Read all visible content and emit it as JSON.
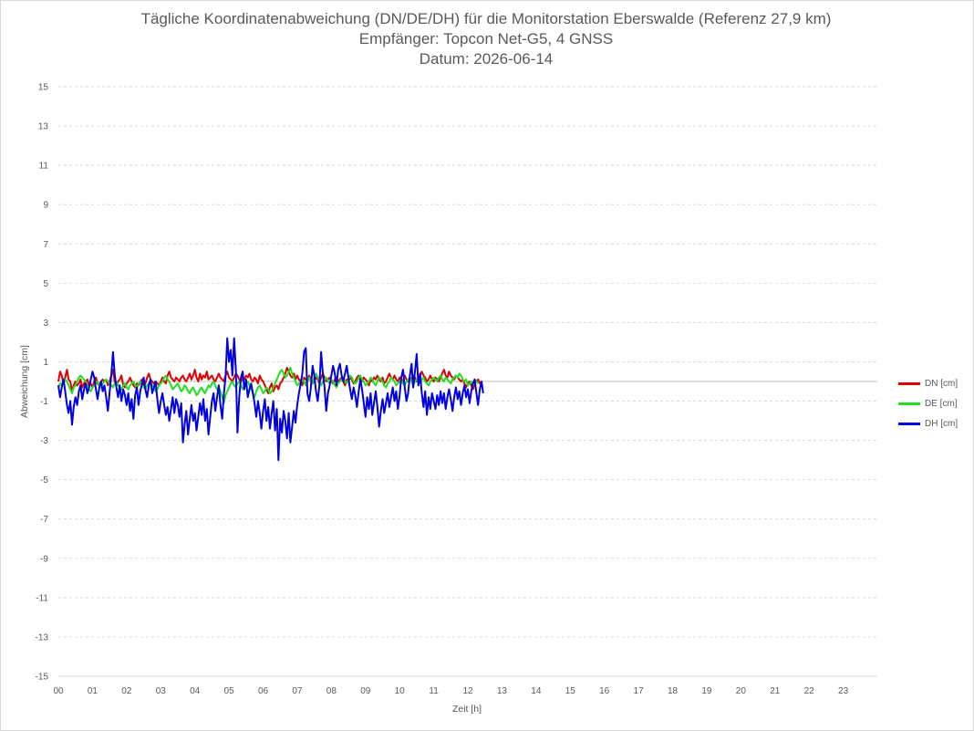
{
  "chart_data": {
    "type": "line",
    "title_lines": [
      "Tägliche Koordinatenabweichung (DN/DE/DH) für die Monitorstation Eberswalde (Referenz 27,9 km)",
      "Empfänger: Topcon Net-G5, 4 GNSS",
      "Datum: 2026-06-14"
    ],
    "xlabel": "Zeit [h]",
    "ylabel": "Abweichung [cm]",
    "xlim": [
      0,
      24
    ],
    "ylim": [
      -15,
      15
    ],
    "x_ticks": [
      "00",
      "01",
      "02",
      "03",
      "04",
      "05",
      "06",
      "07",
      "08",
      "09",
      "10",
      "11",
      "12",
      "13",
      "14",
      "15",
      "16",
      "17",
      "18",
      "19",
      "20",
      "21",
      "22",
      "23"
    ],
    "y_ticks": [
      "15",
      "13",
      "11",
      "9",
      "7",
      "5",
      "3",
      "1",
      "-1",
      "-3",
      "-5",
      "-7",
      "-9",
      "-11",
      "-13",
      "-15"
    ],
    "grid": true,
    "legend_position": "right",
    "sample_interval_h": 0.05,
    "series": [
      {
        "name": "DN [cm]",
        "color": "#e00000",
        "x_start": 0,
        "values": [
          0.0,
          0.5,
          0.3,
          -0.1,
          0.2,
          0.6,
          0.1,
          0.0,
          -0.5,
          -0.2,
          0.0,
          -0.2,
          -0.1,
          0.1,
          -0.3,
          -0.1,
          0.0,
          0.1,
          -0.2,
          -0.1,
          -0.3,
          0.0,
          0.2,
          -0.1,
          -0.2,
          0.0,
          0.1,
          0.0,
          0.1,
          -0.2,
          0.0,
          0.3,
          0.6,
          0.0,
          -0.2,
          0.0,
          0.1,
          0.3,
          -0.2,
          -0.3,
          -0.1,
          0.0,
          0.2,
          0.0,
          -0.2,
          -0.3,
          -0.1,
          -0.2,
          0.0,
          0.1,
          -0.2,
          -0.1,
          0.2,
          0.4,
          0.1,
          0.0,
          -0.1,
          0.0,
          -0.1,
          -0.2,
          0.0,
          0.2,
          0.0,
          -0.1,
          0.3,
          0.5,
          0.2,
          0.1,
          0.0,
          0.2,
          0.1,
          0.0,
          0.2,
          0.3,
          0.1,
          0.0,
          0.2,
          0.4,
          0.1,
          0.3,
          0.6,
          0.2,
          0.0,
          0.4,
          0.1,
          0.3,
          0.2,
          0.5,
          0.1,
          0.2,
          0.3,
          0.1,
          0.0,
          0.2,
          0.4,
          0.2,
          0.1,
          0.0,
          0.3,
          0.5,
          0.2,
          0.1,
          0.0,
          0.2,
          0.4,
          0.3,
          0.1,
          0.0,
          0.2,
          0.1,
          0.3,
          0.2,
          0.4,
          0.1,
          0.0,
          0.2,
          0.1,
          -0.1,
          0.3,
          0.1,
          0.0,
          -0.2,
          -0.4,
          -0.6,
          -0.3,
          -0.1,
          -0.5,
          -0.3,
          -0.2,
          -0.4,
          -0.1,
          0.0,
          0.2,
          0.4,
          0.7,
          0.5,
          0.3,
          0.2,
          0.4,
          0.1,
          0.3,
          0.1,
          0.0,
          -0.2,
          0.2,
          0.1,
          0.0,
          0.3,
          0.1,
          -0.1,
          0.0,
          0.2,
          0.1,
          -0.1,
          0.2,
          0.4,
          0.2,
          0.0,
          0.1,
          0.2,
          0.0,
          -0.1,
          0.1,
          0.2,
          0.0,
          0.1,
          0.2,
          0.0,
          -0.2,
          0.1,
          0.0,
          0.2,
          0.1,
          -0.1,
          0.0,
          0.2,
          0.3,
          0.1,
          0.0,
          0.2,
          0.1,
          0.0,
          -0.2,
          0.1,
          0.0,
          0.2,
          0.1,
          0.3,
          0.1,
          0.0,
          0.2,
          -0.1,
          0.0,
          0.2,
          0.4,
          0.2,
          0.1,
          0.3,
          0.1,
          0.0,
          0.2,
          0.1,
          0.0,
          0.3,
          0.1,
          0.0,
          0.2,
          0.1,
          0.3,
          0.2,
          0.0,
          0.1,
          0.3,
          0.5,
          0.3,
          0.2,
          0.0,
          0.1,
          0.3,
          0.1,
          0.0,
          0.2,
          0.1,
          0.0,
          0.2,
          0.4,
          0.6,
          0.3,
          0.2,
          0.5,
          0.3,
          0.2,
          0.1,
          0.3,
          0.2,
          0.1,
          0.0,
          0.1,
          -0.1,
          -0.3,
          -0.1,
          0.0,
          -0.2,
          -0.4,
          -0.1,
          0.0,
          0.1,
          -0.1,
          0.0
        ]
      },
      {
        "name": "DE [cm]",
        "color": "#1ee01e",
        "x_start": 0,
        "values": [
          -0.3,
          -0.1,
          -0.2,
          0.0,
          0.1,
          0.0,
          -0.2,
          -0.4,
          -0.6,
          -0.3,
          -0.2,
          0.0,
          0.2,
          0.3,
          0.2,
          0.1,
          0.0,
          -0.2,
          -0.4,
          -0.5,
          -0.3,
          -0.2,
          -0.1,
          0.0,
          -0.2,
          -0.3,
          -0.1,
          0.0,
          0.1,
          0.0,
          -0.1,
          -0.2,
          -0.3,
          -0.1,
          0.0,
          -0.2,
          -0.3,
          -0.4,
          -0.2,
          -0.1,
          -0.3,
          -0.4,
          -0.2,
          -0.1,
          0.0,
          -0.2,
          -0.3,
          -0.1,
          0.0,
          -0.2,
          -0.3,
          -0.4,
          -0.2,
          -0.1,
          0.0,
          -0.2,
          -0.3,
          -0.5,
          -0.4,
          -0.2,
          -0.1,
          0.0,
          0.2,
          0.3,
          0.1,
          0.0,
          -0.2,
          -0.4,
          -0.3,
          -0.2,
          -0.1,
          -0.3,
          -0.5,
          -0.4,
          -0.2,
          -0.3,
          -0.5,
          -0.6,
          -0.4,
          -0.3,
          -0.5,
          -0.7,
          -0.6,
          -0.4,
          -0.3,
          -0.5,
          -0.6,
          -0.4,
          -0.2,
          -0.3,
          -0.1,
          0.0,
          -0.2,
          -0.4,
          -0.3,
          -0.5,
          -0.8,
          -1.1,
          -0.7,
          -0.5,
          -0.3,
          -0.1,
          0.0,
          -0.2,
          -0.3,
          -0.1,
          0.0,
          -0.2,
          -0.4,
          -0.2,
          -0.1,
          0.0,
          -0.2,
          -0.4,
          -0.6,
          -0.8,
          -0.5,
          -0.3,
          -0.2,
          -0.4,
          -0.6,
          -0.5,
          -0.3,
          -0.4,
          -0.6,
          -0.5,
          -0.3,
          -0.1,
          0.1,
          0.3,
          0.5,
          0.6,
          0.4,
          0.2,
          0.3,
          0.5,
          0.7,
          0.4,
          0.2,
          0.0,
          -0.2,
          -0.1,
          0.0,
          0.1,
          0.0,
          -0.2,
          0.1,
          0.2,
          0.0,
          -0.1,
          0.2,
          0.4,
          0.2,
          0.0,
          -0.2,
          0.0,
          0.1,
          0.2,
          0.0,
          -0.1,
          0.1,
          0.0,
          -0.2,
          -0.3,
          -0.1,
          0.0,
          0.1,
          0.2,
          0.0,
          -0.1,
          0.1,
          0.3,
          0.2,
          0.0,
          -0.1,
          0.0,
          0.2,
          0.3,
          0.1,
          0.0,
          -0.2,
          -0.1,
          0.0,
          0.2,
          0.1,
          -0.1,
          -0.2,
          0.0,
          0.2,
          0.1,
          0.0,
          -0.2,
          -0.3,
          -0.1,
          0.0,
          0.2,
          0.1,
          0.0,
          -0.2,
          -0.1,
          0.0,
          0.1,
          -0.1,
          -0.2,
          0.0,
          0.1,
          0.2,
          0.0,
          -0.2,
          0.0,
          0.1,
          0.0,
          -0.1,
          0.1,
          0.2,
          0.0,
          -0.1,
          -0.2,
          0.0,
          0.1,
          0.2,
          0.1,
          0.0,
          0.2,
          0.3,
          0.1,
          0.0,
          0.2,
          0.1,
          0.0,
          -0.1,
          0.1,
          0.2,
          0.3,
          0.2,
          0.4,
          0.3,
          0.1,
          0.0,
          0.1,
          -0.2,
          -0.1,
          0.0,
          -0.2,
          0.1,
          0.0,
          -0.1
        ]
      },
      {
        "name": "DH [cm]",
        "color": "#0000e0",
        "x_start": 0,
        "values": [
          -0.2,
          -0.8,
          -0.3,
          0.1,
          -0.5,
          -1.2,
          -1.6,
          -1.0,
          -2.2,
          -1.3,
          -0.8,
          -1.2,
          -0.5,
          -0.2,
          -0.9,
          -0.4,
          -0.1,
          -0.6,
          -0.3,
          0.1,
          0.5,
          0.2,
          -0.4,
          -0.9,
          -0.3,
          0.0,
          -0.5,
          -0.2,
          -0.8,
          -1.5,
          -0.6,
          0.3,
          1.5,
          0.4,
          -0.3,
          -0.8,
          -0.2,
          -1.0,
          -0.4,
          -0.7,
          -1.2,
          -0.6,
          -1.5,
          -0.9,
          -1.9,
          -0.7,
          -0.3,
          -1.2,
          -0.5,
          -0.1,
          0.2,
          -0.4,
          -0.8,
          -0.2,
          0.1,
          -0.6,
          -0.3,
          0.0,
          -0.9,
          -1.6,
          -1.0,
          -0.6,
          -1.2,
          -1.7,
          -1.3,
          -2.0,
          -1.4,
          -0.8,
          -1.6,
          -0.9,
          -1.2,
          -1.8,
          -1.1,
          -3.1,
          -2.2,
          -1.5,
          -2.7,
          -1.9,
          -1.2,
          -2.0,
          -1.6,
          -2.5,
          -1.8,
          -1.1,
          -1.7,
          -0.9,
          -2.0,
          -1.4,
          -2.7,
          -1.8,
          -1.0,
          -0.6,
          -1.5,
          -0.8,
          -0.2,
          -1.2,
          -1.9,
          -0.6,
          0.2,
          2.2,
          1.0,
          1.6,
          0.3,
          2.2,
          0.6,
          -2.6,
          -0.8,
          0.2,
          0.5,
          -0.4,
          0.1,
          -0.8,
          -0.4,
          -0.1,
          -0.6,
          -1.1,
          -1.8,
          -1.0,
          -1.6,
          -2.4,
          -1.5,
          -0.9,
          -2.0,
          -1.3,
          -2.4,
          -1.6,
          -1.0,
          -2.5,
          -1.4,
          -4.0,
          -1.9,
          -2.6,
          -1.5,
          -2.0,
          -2.9,
          -1.6,
          -3.1,
          -2.3,
          -1.5,
          -2.1,
          -1.2,
          -0.6,
          -0.1,
          0.4,
          1.5,
          1.7,
          -0.6,
          -1.0,
          -0.3,
          0.8,
          0.3,
          -0.5,
          -1.0,
          -0.2,
          1.5,
          0.4,
          -0.3,
          -1.5,
          -0.6,
          -0.2,
          0.3,
          0.8,
          0.4,
          -0.2,
          0.6,
          0.9,
          0.3,
          0.0,
          0.4,
          0.8,
          0.2,
          -0.4,
          -0.9,
          -0.3,
          -0.7,
          -1.3,
          -0.5,
          0.1,
          -0.4,
          -1.1,
          -1.8,
          -0.8,
          -1.4,
          -0.6,
          -1.7,
          -1.1,
          -0.5,
          -1.3,
          -2.3,
          -1.5,
          -0.9,
          -1.6,
          -1.1,
          -0.6,
          -1.3,
          -0.8,
          -0.3,
          -1.0,
          -0.5,
          -1.4,
          -0.7,
          0.2,
          0.6,
          -0.3,
          -1.0,
          -0.6,
          0.3,
          0.9,
          -0.3,
          0.5,
          1.4,
          -0.2,
          0.4,
          -0.6,
          -1.3,
          -0.5,
          -1.7,
          -0.8,
          -1.4,
          -0.6,
          -1.0,
          -1.4,
          -0.7,
          -1.2,
          -0.5,
          -1.1,
          -0.6,
          -1.4,
          -0.8,
          -0.4,
          -0.9,
          -1.5,
          -0.8,
          -0.3,
          -0.9,
          -0.5,
          -1.2,
          -0.6,
          -0.2,
          -0.8,
          -0.4,
          -1.1,
          -0.5,
          -0.1,
          0.1,
          -0.6,
          -1.2,
          -0.4,
          0.0,
          -0.6
        ]
      }
    ]
  }
}
